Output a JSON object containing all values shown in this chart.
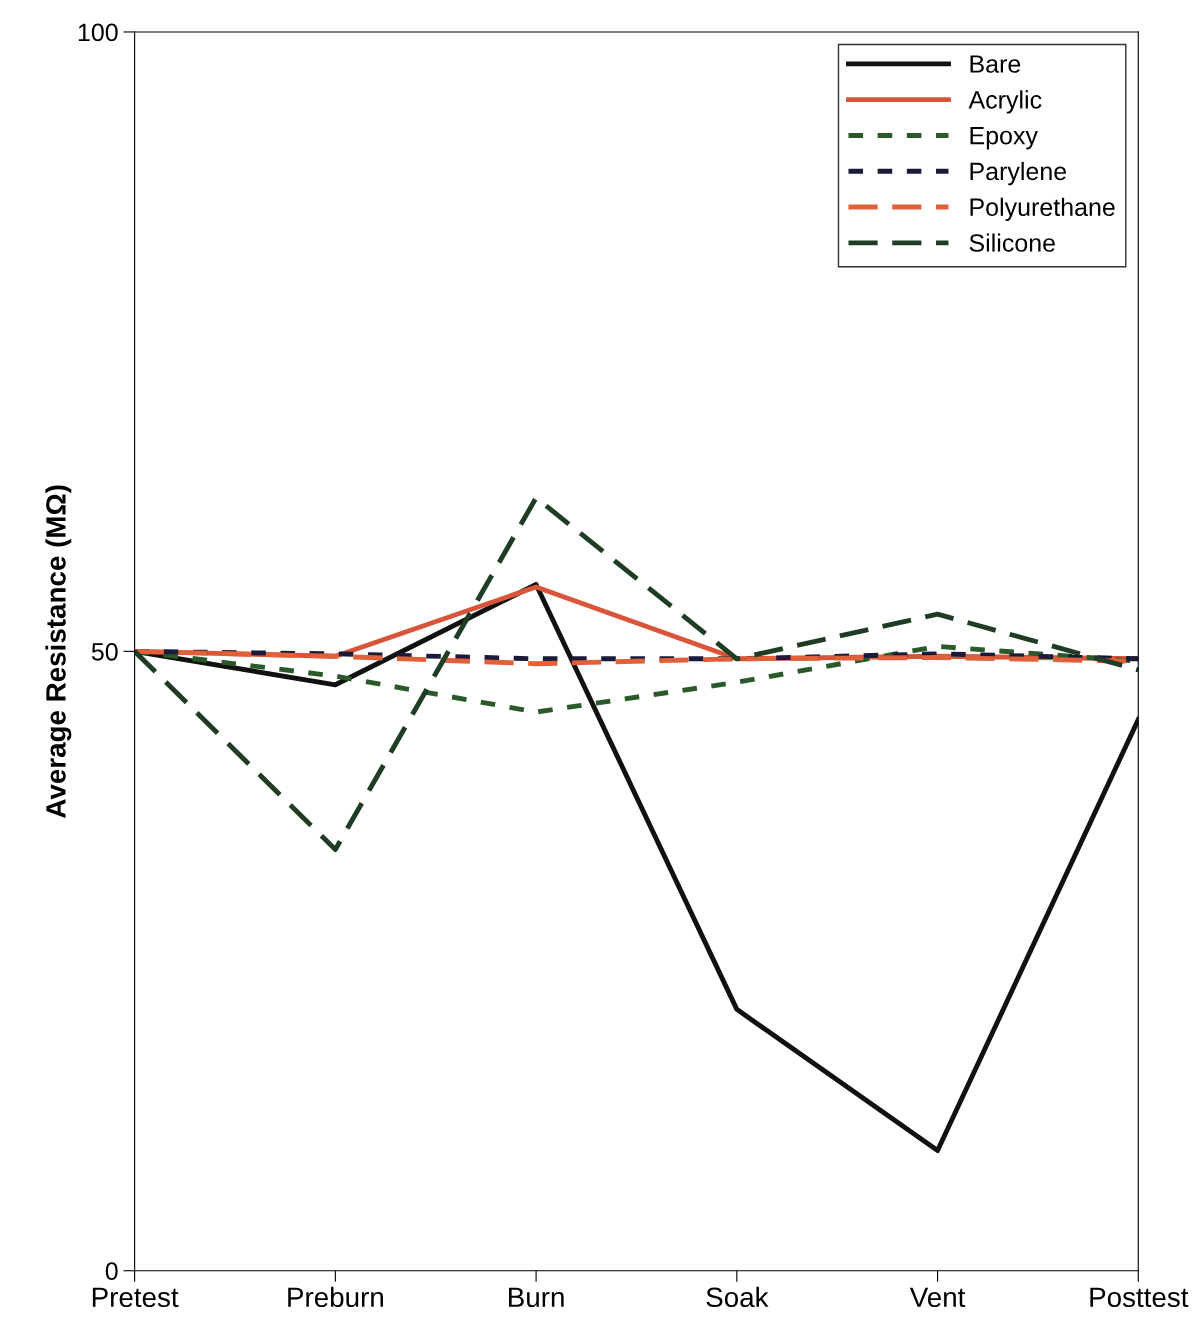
{
  "chart_data": {
    "type": "line",
    "ylabel": "Average Resistance (MΩ)",
    "categories": [
      "Pretest",
      "Preburn",
      "Burn",
      "Soak",
      "Vent",
      "Posttest"
    ],
    "ylim": [
      0,
      100
    ],
    "yticks": [
      0,
      50,
      100
    ],
    "grid": false,
    "legend": "top right",
    "series": [
      {
        "name": "Bare",
        "color": "#111111",
        "line_style": "solid",
        "values": [
          50,
          47.3,
          55.4,
          21.1,
          9.7,
          44.5
        ]
      },
      {
        "name": "Acrylic",
        "color": "#d9553a",
        "line_style": "solid",
        "values": [
          50,
          49.6,
          55.2,
          49.4,
          49.6,
          49.4
        ]
      },
      {
        "name": "Epoxy",
        "color": "#2a5a2a",
        "line_style": "dotted",
        "values": [
          50,
          48.0,
          45.1,
          47.5,
          50.4,
          49.2
        ]
      },
      {
        "name": "Parylene",
        "color": "#1a1a3a",
        "line_style": "dotted",
        "values": [
          50,
          49.8,
          49.4,
          49.4,
          49.8,
          49.4
        ]
      },
      {
        "name": "Polyurethane",
        "color": "#e0603a",
        "line_style": "dashed",
        "values": [
          50,
          49.6,
          49.0,
          49.4,
          49.5,
          49.2
        ]
      },
      {
        "name": "Silicone",
        "color": "#1f3d24",
        "line_style": "dashed",
        "values": [
          50,
          34.0,
          62.4,
          49.4,
          53.0,
          48.5
        ]
      }
    ]
  }
}
